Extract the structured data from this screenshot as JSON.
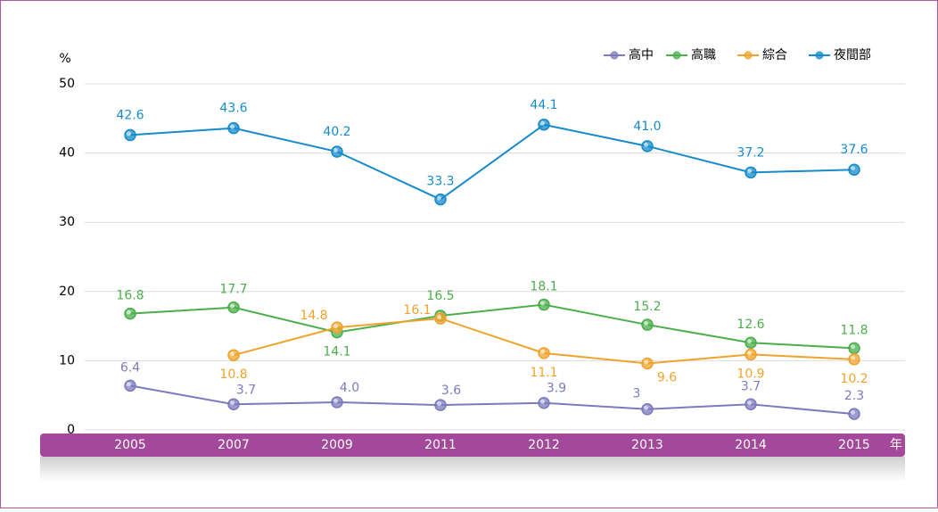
{
  "chart_data": {
    "type": "line",
    "y_label": "%",
    "x_unit": "年",
    "categories": [
      "2005",
      "2007",
      "2009",
      "2011",
      "2012",
      "2013",
      "2014",
      "2015"
    ],
    "ylim": [
      0,
      50
    ],
    "yticks": [
      0,
      10,
      20,
      30,
      40,
      50
    ],
    "grid": true,
    "legend": "top-right",
    "series": [
      {
        "name": "高中",
        "color": "#7b7bbd",
        "values": [
          6.4,
          3.7,
          4.0,
          3.6,
          3.9,
          3,
          3.7,
          2.3
        ],
        "value_labels": [
          "6.4",
          "3.7",
          "4.0",
          "3.6",
          "3.9",
          "3",
          "3.7",
          "2.3"
        ]
      },
      {
        "name": "高職",
        "color": "#4cae4c",
        "values": [
          16.8,
          17.7,
          14.1,
          16.5,
          18.1,
          15.2,
          12.6,
          11.8
        ],
        "value_labels": [
          "16.8",
          "17.7",
          "14.1",
          "16.5",
          "18.1",
          "15.2",
          "12.6",
          "11.8"
        ]
      },
      {
        "name": "綜合",
        "color": "#f0a32c",
        "values": [
          null,
          10.8,
          14.8,
          16.1,
          11.1,
          9.6,
          10.9,
          10.2
        ],
        "value_labels": [
          null,
          "10.8",
          "14.8",
          "16.1",
          "11.1",
          "9.6",
          "10.9",
          "10.2"
        ]
      },
      {
        "name": "夜間部",
        "color": "#168bcb",
        "values": [
          42.6,
          43.6,
          40.2,
          33.3,
          44.1,
          41.0,
          37.2,
          37.6
        ],
        "value_labels": [
          "42.6",
          "43.6",
          "40.2",
          "33.3",
          "44.1",
          "41.0",
          "37.2",
          "37.6"
        ]
      }
    ]
  }
}
